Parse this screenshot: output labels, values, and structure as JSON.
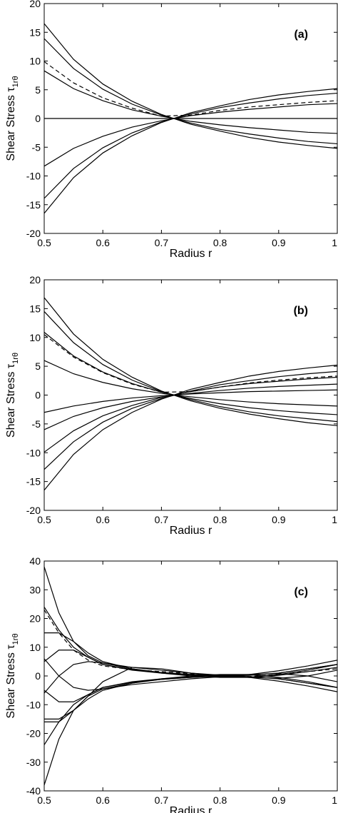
{
  "chart_data": [
    {
      "type": "line",
      "annotation": "(a)",
      "xlabel": "Radius r",
      "ylabel": "Shear Stress τ",
      "ylabel_subscript": "1rθ",
      "x": [
        0.5,
        0.55,
        0.6,
        0.65,
        0.7,
        0.75,
        0.8,
        0.85,
        0.9,
        0.95,
        1.0
      ],
      "xlim": [
        0.5,
        1
      ],
      "xticks": [
        0.5,
        0.6,
        0.7,
        0.8,
        0.9,
        1
      ],
      "ylim": [
        -20,
        20
      ],
      "yticks": [
        -20,
        -15,
        -10,
        -5,
        0,
        5,
        10,
        15,
        20
      ],
      "series": [
        {
          "color": "#000000",
          "style": "solid",
          "values": [
            16.5,
            10.3,
            6.0,
            3.0,
            0.7,
            -1.0,
            -2.2,
            -3.3,
            -4.1,
            -4.7,
            -5.2
          ]
        },
        {
          "color": "#000000",
          "style": "solid",
          "values": [
            13.9,
            8.7,
            5.1,
            2.5,
            0.6,
            -0.8,
            -1.9,
            -2.7,
            -3.4,
            -4.0,
            -4.4
          ]
        },
        {
          "color": "#000000",
          "style": "solid",
          "values": [
            8.3,
            5.2,
            3.1,
            1.5,
            0.4,
            -0.5,
            -1.1,
            -1.6,
            -2.0,
            -2.4,
            -2.6
          ]
        },
        {
          "color": "#000000",
          "style": "solid",
          "values": [
            0,
            0,
            0,
            0,
            0,
            0,
            0,
            0,
            0,
            0,
            0
          ]
        },
        {
          "color": "#000000",
          "style": "solid",
          "values": [
            -8.3,
            -5.2,
            -3.1,
            -1.5,
            -0.4,
            0.5,
            1.1,
            1.6,
            2.0,
            2.4,
            2.6
          ]
        },
        {
          "color": "#000000",
          "style": "solid",
          "values": [
            -13.9,
            -8.7,
            -5.1,
            -2.5,
            -0.6,
            0.8,
            1.9,
            2.7,
            3.4,
            4.0,
            4.4
          ]
        },
        {
          "color": "#000000",
          "style": "solid",
          "values": [
            -16.5,
            -10.3,
            -6.0,
            -3.0,
            -0.7,
            1.0,
            2.2,
            3.3,
            4.1,
            4.7,
            5.2
          ]
        },
        {
          "color": "#000000",
          "style": "dashed",
          "values": [
            9.9,
            6.2,
            3.6,
            1.8,
            0.4,
            0.6,
            1.4,
            2.0,
            2.4,
            2.8,
            3.1
          ]
        }
      ]
    },
    {
      "type": "line",
      "annotation": "(b)",
      "xlabel": "Radius r",
      "ylabel": "Shear Stress τ",
      "ylabel_subscript": "1rθ",
      "x": [
        0.5,
        0.55,
        0.6,
        0.65,
        0.7,
        0.75,
        0.8,
        0.85,
        0.9,
        0.95,
        1.0
      ],
      "xlim": [
        0.5,
        1
      ],
      "xticks": [
        0.5,
        0.6,
        0.7,
        0.8,
        0.9,
        1
      ],
      "ylim": [
        -20,
        20
      ],
      "yticks": [
        -20,
        -15,
        -10,
        -5,
        0,
        5,
        10,
        15,
        20
      ],
      "series": [
        {
          "color": "#000000",
          "style": "solid",
          "values": [
            16.9,
            10.6,
            6.2,
            3.1,
            0.7,
            -1.0,
            -2.3,
            -3.3,
            -4.1,
            -4.8,
            -5.3
          ]
        },
        {
          "color": "#000000",
          "style": "solid",
          "values": [
            14.5,
            9.1,
            5.3,
            2.6,
            0.6,
            -0.8,
            -2.0,
            -2.9,
            -3.6,
            -4.1,
            -4.6
          ]
        },
        {
          "color": "#000000",
          "style": "solid",
          "values": [
            10.9,
            6.8,
            4.0,
            2.0,
            0.5,
            -0.6,
            -1.5,
            -2.2,
            -2.7,
            -3.1,
            -3.4
          ]
        },
        {
          "color": "#000000",
          "style": "solid",
          "values": [
            6.0,
            3.7,
            2.2,
            1.1,
            0.3,
            -0.3,
            -0.8,
            -1.2,
            -1.5,
            -1.7,
            -1.9
          ]
        },
        {
          "color": "#000000",
          "style": "solid",
          "values": [
            -3.0,
            -1.9,
            -1.1,
            -0.5,
            -0.1,
            0.2,
            0.4,
            0.6,
            0.7,
            0.8,
            0.9
          ]
        },
        {
          "color": "#000000",
          "style": "solid",
          "values": [
            -6.0,
            -3.7,
            -2.2,
            -1.1,
            -0.3,
            0.3,
            0.8,
            1.2,
            1.5,
            1.7,
            1.9
          ]
        },
        {
          "color": "#000000",
          "style": "solid",
          "values": [
            -9.9,
            -6.2,
            -3.6,
            -1.8,
            -0.4,
            0.6,
            1.4,
            2.0,
            2.4,
            2.8,
            3.1
          ]
        },
        {
          "color": "#000000",
          "style": "solid",
          "values": [
            -12.9,
            -8.1,
            -4.7,
            -2.3,
            -0.6,
            0.7,
            1.8,
            2.5,
            3.2,
            3.7,
            4.1
          ]
        },
        {
          "color": "#000000",
          "style": "solid",
          "values": [
            -16.5,
            -10.3,
            -6.0,
            -3.0,
            -0.7,
            1.0,
            2.2,
            3.3,
            4.1,
            4.7,
            5.2
          ]
        },
        {
          "color": "#000000",
          "style": "dashed",
          "values": [
            10.5,
            6.6,
            3.9,
            1.9,
            0.5,
            0.6,
            1.4,
            2.1,
            2.6,
            3.0,
            3.3
          ]
        }
      ]
    },
    {
      "type": "line",
      "annotation": "(c)",
      "xlabel": "Radius r",
      "ylabel": "Shear Stress τ",
      "ylabel_subscript": "1rθ",
      "x": [
        0.5,
        0.525,
        0.55,
        0.575,
        0.6,
        0.65,
        0.7,
        0.75,
        0.8,
        0.85,
        0.9,
        0.95,
        1.0
      ],
      "xlim": [
        0.5,
        1
      ],
      "xticks": [
        0.5,
        0.6,
        0.7,
        0.8,
        0.9,
        1
      ],
      "ylim": [
        -40,
        40
      ],
      "yticks": [
        -40,
        -30,
        -20,
        -10,
        0,
        10,
        20,
        30,
        40
      ],
      "series": [
        {
          "color": "#000000",
          "style": "solid",
          "values": [
            38,
            22,
            12,
            7,
            4.5,
            3,
            2,
            1,
            0.3,
            -0.5,
            -1.8,
            -3.5,
            -5.5
          ]
        },
        {
          "color": "#000000",
          "style": "solid",
          "values": [
            -38,
            -22,
            -12,
            -7,
            -4.5,
            -3,
            -2,
            -1,
            -0.3,
            0.5,
            1.8,
            3.5,
            5.5
          ]
        },
        {
          "color": "#000000",
          "style": "solid",
          "values": [
            24,
            16,
            10,
            6.5,
            4,
            2.2,
            1.2,
            0.5,
            0,
            -0.3,
            -1,
            -2.5,
            -4
          ]
        },
        {
          "color": "#000000",
          "style": "solid",
          "values": [
            -24,
            -16,
            -10,
            -6.5,
            -4,
            -2.2,
            -1.2,
            -0.5,
            0,
            0.3,
            1,
            2.5,
            4
          ]
        },
        {
          "color": "#000000",
          "style": "solid",
          "values": [
            15,
            15,
            12,
            8,
            5,
            2.5,
            1.2,
            0.5,
            0,
            0.2,
            1,
            2.5,
            4
          ]
        },
        {
          "color": "#000000",
          "style": "solid",
          "values": [
            -15,
            -15,
            -12,
            -8,
            -5,
            -2.5,
            -1.2,
            -0.5,
            0,
            -0.2,
            -1,
            -2.5,
            -4
          ]
        },
        {
          "color": "#000000",
          "style": "solid",
          "values": [
            5,
            9,
            9,
            6.5,
            4,
            2,
            1,
            0.3,
            -0.2,
            -0.5,
            -0.8,
            0,
            2
          ]
        },
        {
          "color": "#000000",
          "style": "solid",
          "values": [
            -5,
            -9,
            -9,
            -6.5,
            -4,
            -2,
            -1,
            -0.3,
            0.2,
            0.5,
            0.8,
            0,
            -2
          ]
        },
        {
          "color": "#000000",
          "style": "solid",
          "values": [
            -6,
            0,
            4,
            5,
            4.5,
            2.5,
            1,
            0,
            -0.5,
            -0.5,
            0.5,
            2,
            4
          ]
        },
        {
          "color": "#000000",
          "style": "solid",
          "values": [
            6,
            0,
            -4,
            -5,
            -4.5,
            -2.5,
            -1,
            0,
            0.5,
            0.5,
            -0.5,
            -2,
            -4
          ]
        },
        {
          "color": "#000000",
          "style": "solid",
          "values": [
            -16,
            -16,
            -12,
            -7,
            -2,
            3,
            2.5,
            1,
            0,
            -0.5,
            0.2,
            1.5,
            3
          ]
        },
        {
          "color": "#000000",
          "style": "dashed",
          "values": [
            23,
            15,
            9,
            5.5,
            3.5,
            2.2,
            1.5,
            0.8,
            0.2,
            -0.2,
            0.5,
            1.5,
            2.5
          ]
        }
      ]
    }
  ]
}
